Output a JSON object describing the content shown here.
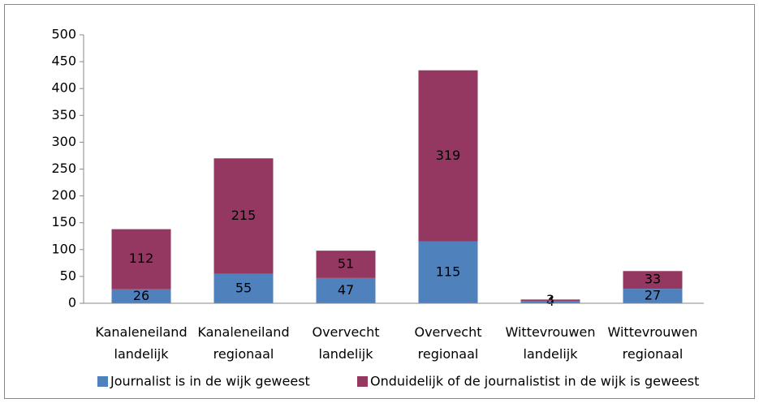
{
  "chart_data": {
    "type": "stacked-bar",
    "categories": [
      [
        "Kanaleneiland",
        "landelijk"
      ],
      [
        "Kanaleneiland",
        "regionaal"
      ],
      [
        "Overvecht",
        "landelijk"
      ],
      [
        "Overvecht",
        "regionaal"
      ],
      [
        "Wittevrouwen",
        "landelijk"
      ],
      [
        "Wittevrouwen",
        "regionaal"
      ]
    ],
    "series": [
      {
        "name": "Journalist is in de wijk geweest",
        "color": "#4f81bd",
        "values": [
          26,
          55,
          47,
          115,
          4,
          27
        ]
      },
      {
        "name": "Onduidelijk of de journalistist in de wijk is geweest",
        "color": "#953861",
        "values": [
          112,
          215,
          51,
          319,
          3,
          33
        ]
      }
    ],
    "ylim": [
      0,
      500
    ],
    "yticks": [
      0,
      50,
      100,
      150,
      200,
      250,
      300,
      350,
      400,
      450,
      500
    ],
    "legend": "bottom"
  }
}
